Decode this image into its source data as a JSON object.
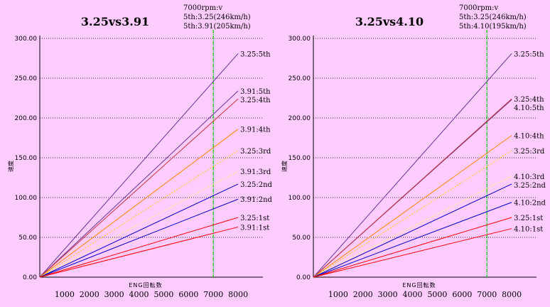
{
  "chart_data": [
    {
      "type": "line",
      "title": "3.25vs3.91",
      "annotation": [
        "7000rpm:v",
        "5th:3.25(246km/h)",
        "5th:3.91(205km/h)"
      ],
      "xlabel": "ENG回転数",
      "ylabel": "速度",
      "xlim": [
        0,
        9000
      ],
      "ylim": [
        0,
        300
      ],
      "xticks": [
        "1000",
        "2000",
        "3000",
        "4000",
        "5000",
        "6000",
        "7000",
        "8000"
      ],
      "yticks": [
        "0.00",
        "50.00",
        "100.00",
        "150.00",
        "200.00",
        "250.00",
        "300.00"
      ],
      "grid": true,
      "marker_rpm": 7000,
      "series": [
        {
          "name": "3.25:5th",
          "x": [
            0,
            8000
          ],
          "y": [
            0,
            281
          ],
          "color": "#663399",
          "dashed": false
        },
        {
          "name": "3.91:5th",
          "x": [
            0,
            8000
          ],
          "y": [
            0,
            234
          ],
          "color": "#663399",
          "dashed": false
        },
        {
          "name": "3.25:4th",
          "x": [
            0,
            8000
          ],
          "y": [
            0,
            224
          ],
          "color": "#cc3333",
          "dashed": false
        },
        {
          "name": "3.91:4th",
          "x": [
            0,
            8000
          ],
          "y": [
            0,
            186
          ],
          "color": "#ff8800",
          "dashed": false
        },
        {
          "name": "3.25:3rd",
          "x": [
            0,
            8000
          ],
          "y": [
            0,
            159
          ],
          "color": "#ffcc00",
          "dashed": true
        },
        {
          "name": "3.91:3rd",
          "x": [
            0,
            8000
          ],
          "y": [
            0,
            133
          ],
          "color": "#ffff66",
          "dashed": true
        },
        {
          "name": "3.25:2nd",
          "x": [
            0,
            8000
          ],
          "y": [
            0,
            117
          ],
          "color": "#0000cc",
          "dashed": false
        },
        {
          "name": "3.91:2nd",
          "x": [
            0,
            8000
          ],
          "y": [
            0,
            98
          ],
          "color": "#0000cc",
          "dashed": false
        },
        {
          "name": "3.25:1st",
          "x": [
            0,
            8000
          ],
          "y": [
            0,
            75
          ],
          "color": "#ff0000",
          "dashed": false
        },
        {
          "name": "3.91:1st",
          "x": [
            0,
            8000
          ],
          "y": [
            0,
            63
          ],
          "color": "#ff0000",
          "dashed": false
        }
      ]
    },
    {
      "type": "line",
      "title": "3.25vs4.10",
      "annotation": [
        "7000rpm:v",
        "5th:3.25(246km/h)",
        "5th:4.10(195km/h)"
      ],
      "xlabel": "ENG回転数",
      "ylabel": "速度",
      "xlim": [
        0,
        9000
      ],
      "ylim": [
        0,
        300
      ],
      "xticks": [
        "1000",
        "2000",
        "3000",
        "4000",
        "5000",
        "6000",
        "7000",
        "8000"
      ],
      "yticks": [
        "0.00",
        "50.00",
        "100.00",
        "150.00",
        "200.00",
        "250.00",
        "300.00"
      ],
      "grid": true,
      "marker_rpm": 7000,
      "series": [
        {
          "name": "3.25:5th",
          "x": [
            0,
            8000
          ],
          "y": [
            0,
            281
          ],
          "color": "#663399",
          "dashed": false
        },
        {
          "name": "4.10:5th",
          "x": [
            0,
            8000
          ],
          "y": [
            0,
            223
          ],
          "color": "#663399",
          "dashed": false
        },
        {
          "name": "3.25:4th",
          "x": [
            0,
            8000
          ],
          "y": [
            0,
            224
          ],
          "color": "#cc3333",
          "dashed": false
        },
        {
          "name": "4.10:4th",
          "x": [
            0,
            8000
          ],
          "y": [
            0,
            178
          ],
          "color": "#ff8800",
          "dashed": false
        },
        {
          "name": "3.25:3rd",
          "x": [
            0,
            8000
          ],
          "y": [
            0,
            159
          ],
          "color": "#ffcc00",
          "dashed": true
        },
        {
          "name": "4.10:3rd",
          "x": [
            0,
            8000
          ],
          "y": [
            0,
            127
          ],
          "color": "#ffff66",
          "dashed": true
        },
        {
          "name": "3.25:2nd",
          "x": [
            0,
            8000
          ],
          "y": [
            0,
            117
          ],
          "color": "#0000cc",
          "dashed": false
        },
        {
          "name": "4.10:2nd",
          "x": [
            0,
            8000
          ],
          "y": [
            0,
            94
          ],
          "color": "#0000cc",
          "dashed": false
        },
        {
          "name": "3.25:1st",
          "x": [
            0,
            8000
          ],
          "y": [
            0,
            75
          ],
          "color": "#ff0000",
          "dashed": false
        },
        {
          "name": "4.10:1st",
          "x": [
            0,
            8000
          ],
          "y": [
            0,
            61
          ],
          "color": "#ff0000",
          "dashed": false
        }
      ]
    }
  ],
  "colors": {
    "background": "#ffccff",
    "grid": "#000000",
    "marker_line": "#00cc00"
  }
}
